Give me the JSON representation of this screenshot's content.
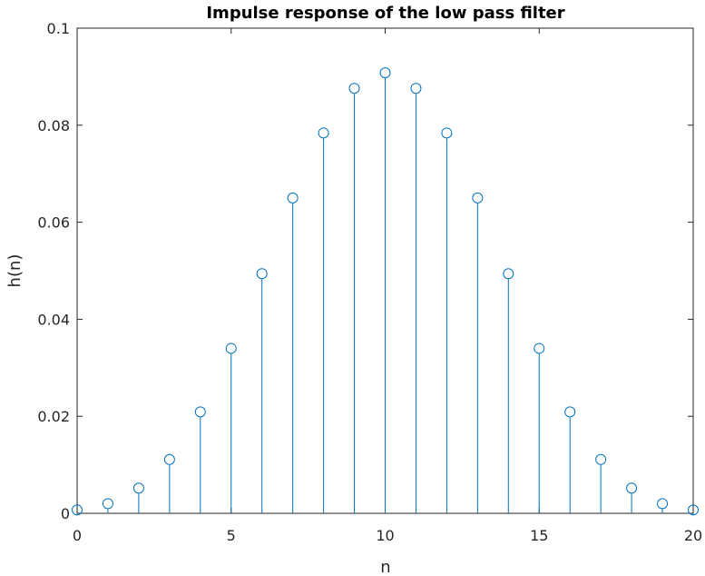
{
  "chart_data": {
    "type": "stem",
    "title": "Impulse response of the low pass filter",
    "xlabel": "n",
    "ylabel": "h(n)",
    "xlim": [
      0,
      20
    ],
    "ylim": [
      0,
      0.1
    ],
    "x_ticks": [
      0,
      5,
      10,
      15,
      20
    ],
    "y_ticks": [
      0,
      0.02,
      0.04,
      0.06,
      0.08,
      0.1
    ],
    "y_tick_labels": [
      "0",
      "0.02",
      "0.04",
      "0.06",
      "0.08",
      "0.1"
    ],
    "grid": false,
    "box": true,
    "marker": "circle",
    "series": [
      {
        "color": "#0072BD",
        "x": [
          0,
          1,
          2,
          3,
          4,
          5,
          6,
          7,
          8,
          9,
          10,
          11,
          12,
          13,
          14,
          15,
          16,
          17,
          18,
          19,
          20
        ],
        "values": [
          0.0007,
          0.002,
          0.0052,
          0.0111,
          0.0209,
          0.034,
          0.0494,
          0.065,
          0.0784,
          0.0876,
          0.0908,
          0.0876,
          0.0784,
          0.065,
          0.0494,
          0.034,
          0.0209,
          0.0111,
          0.0052,
          0.002,
          0.0007
        ]
      }
    ]
  }
}
